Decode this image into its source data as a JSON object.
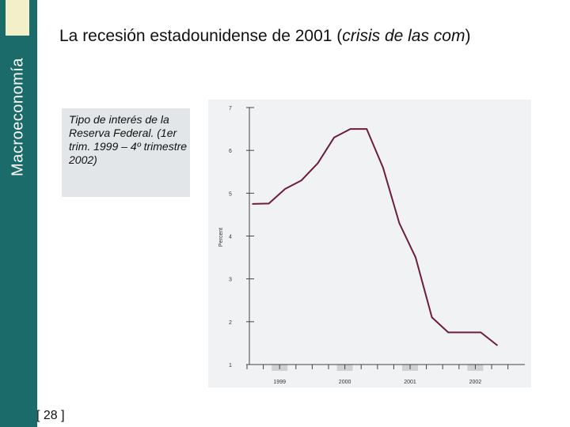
{
  "sidebar": {
    "title": "Macroeconomía",
    "accent_color": "#1c6b6b"
  },
  "slide": {
    "title_part1": "La recesión estadounidense de 2001 (",
    "title_italic": "crisis de las com",
    "title_part2": ")",
    "caption": "Tipo de interés de la Reserva Federal. (1er trim. 1999 – 4º trimestre 2002)",
    "page_number": "[ 28 ]"
  },
  "chart_data": {
    "type": "line",
    "title": "",
    "xlabel": "",
    "ylabel": "Percent",
    "ylim": [
      1,
      7
    ],
    "yticks": [
      1,
      2,
      3,
      4,
      5,
      6,
      7
    ],
    "ytick_labels": [
      "1",
      "2",
      "3",
      "4",
      "5",
      "6",
      "7"
    ],
    "xtick_labels": [
      "1999",
      "2000",
      "2001",
      "2002"
    ],
    "shaded_periods": [
      "1999",
      "2000",
      "2001",
      "2002"
    ],
    "grid": false,
    "line_color": "#6b1f35",
    "x": [
      1999.0,
      1999.25,
      1999.5,
      1999.75,
      2000.0,
      2000.25,
      2000.5,
      2000.75,
      2001.0,
      2001.25,
      2001.5,
      2001.75,
      2002.0,
      2002.25,
      2002.5,
      2002.75
    ],
    "values": [
      4.75,
      4.76,
      5.1,
      5.3,
      5.7,
      6.3,
      6.5,
      6.5,
      5.6,
      4.3,
      3.5,
      2.1,
      1.75,
      1.75,
      1.75,
      1.45
    ]
  }
}
